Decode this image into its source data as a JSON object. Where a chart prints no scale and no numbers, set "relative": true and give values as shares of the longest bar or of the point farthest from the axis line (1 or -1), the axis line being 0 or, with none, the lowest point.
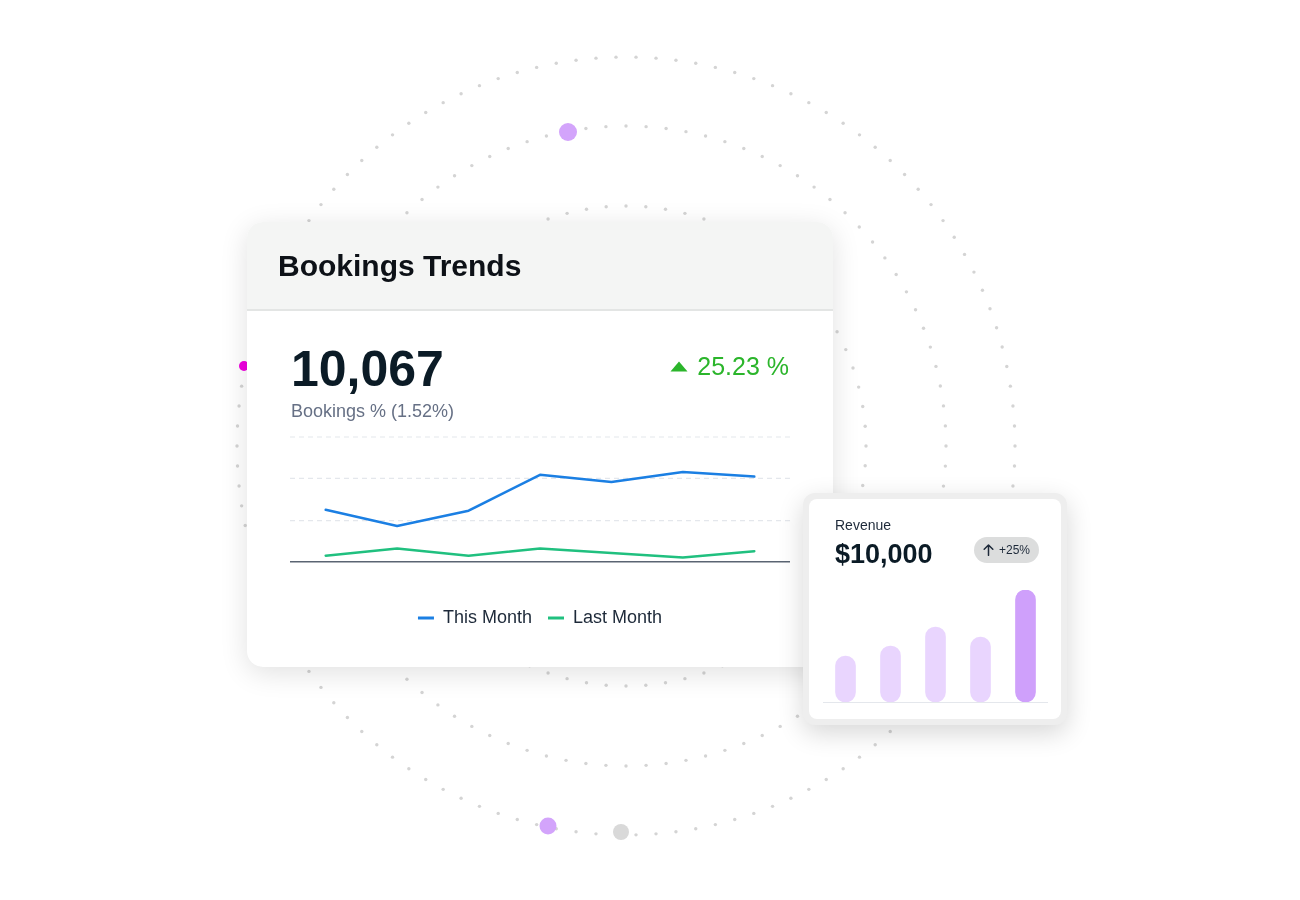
{
  "chart_data": [
    {
      "type": "line",
      "title": "Bookings Trends",
      "subtitle": "10,067",
      "annotations": [
        "Bookings % (1.52%)",
        "25.23 %"
      ],
      "categories": [
        null,
        null,
        null,
        null,
        null,
        null,
        null
      ],
      "relative": true,
      "series": [
        {
          "name": "This Month",
          "color": "#1b7fe3",
          "values": [
            0.58,
            0.4,
            0.57,
            0.97,
            0.89,
            1,
            0.95
          ]
        },
        {
          "name": "Last Month",
          "color": "#20c07f",
          "values": [
            0.07,
            0.15,
            0.07,
            0.15,
            0.1,
            0.05,
            0.12
          ]
        }
      ],
      "ref_lines": [
        {
          "axis": "y",
          "value": 0.46,
          "color": "#e4e7ec",
          "line_style": "dashed"
        },
        {
          "axis": "y",
          "value": 0.93,
          "color": "#e4e7ec",
          "line_style": "dashed"
        },
        {
          "axis": "y",
          "value": 1.39,
          "color": "#e4e7ec",
          "line_style": "dashed"
        }
      ],
      "legend": "bottom",
      "tick_labels": false,
      "marker": "none"
    },
    {
      "type": "bar",
      "title": "Revenue",
      "subtitle": "$10,000",
      "annotations": [
        "+25%"
      ],
      "categories": [
        null,
        null,
        null,
        null,
        null
      ],
      "relative": true,
      "series": [
        {
          "colors": [
            "#e9d5fe",
            "#e9d5fe",
            "#e9d5fe",
            "#e9d5fe",
            "#cfa0fb"
          ],
          "values": [
            0.41,
            0.5,
            0.67,
            0.58,
            1
          ]
        }
      ],
      "tick_labels": false
    }
  ]
}
